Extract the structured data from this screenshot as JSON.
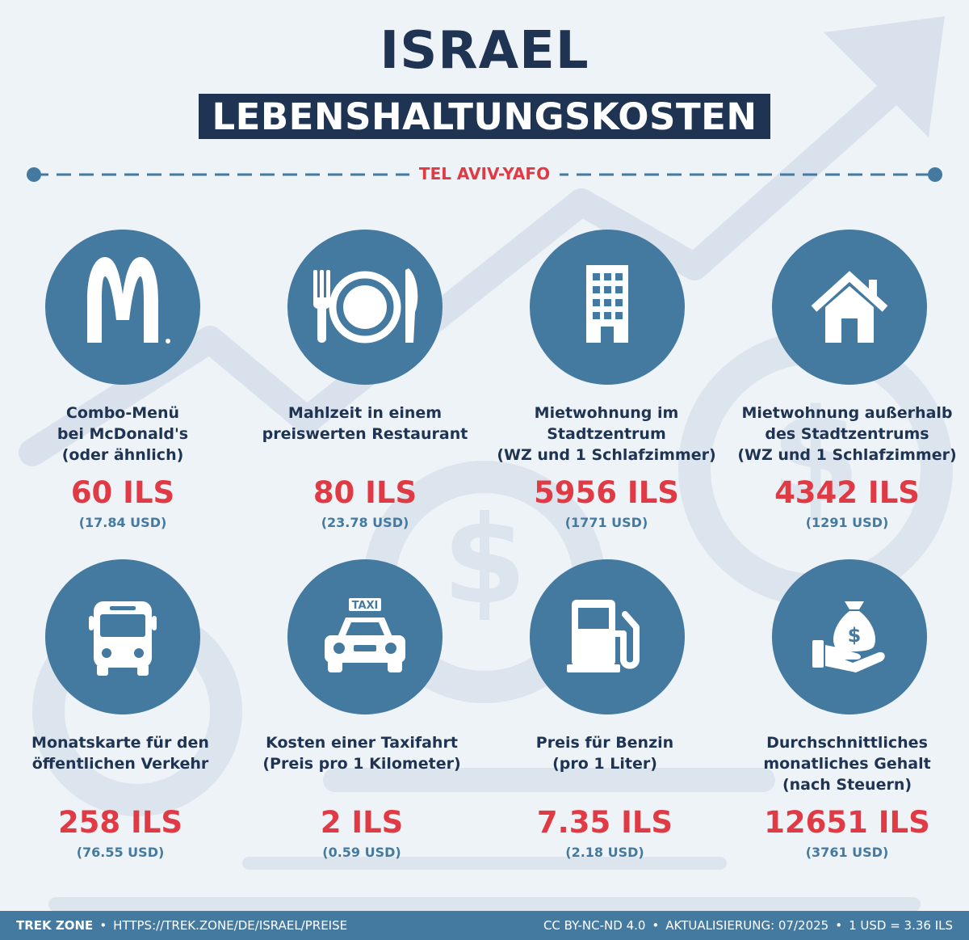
{
  "header": {
    "title": "ISRAEL",
    "subtitle": "LEBENSHALTUNGSKOSTEN",
    "city": "TEL AVIV-YAFO"
  },
  "items": [
    {
      "label": "Combo-Menü\nbei McDonald's\n(oder ähnlich)",
      "price": "60 ILS",
      "usd": "(17.84 USD)",
      "icon": "mcdonalds-icon"
    },
    {
      "label": "Mahlzeit in einem\npreiswerten Restaurant",
      "price": "80 ILS",
      "usd": "(23.78 USD)",
      "icon": "plate-cutlery-icon"
    },
    {
      "label": "Mietwohnung im\nStadtzentrum\n(WZ und 1 Schlafzimmer)",
      "price": "5956 ILS",
      "usd": "(1771 USD)",
      "icon": "building-icon"
    },
    {
      "label": "Mietwohnung außerhalb\ndes Stadtzentrums\n(WZ und 1 Schlafzimmer)",
      "price": "4342 ILS",
      "usd": "(1291 USD)",
      "icon": "house-icon"
    },
    {
      "label": "Monatskarte für den\nöffentlichen Verkehr",
      "price": "258 ILS",
      "usd": "(76.55 USD)",
      "icon": "bus-icon"
    },
    {
      "label": "Kosten einer Taxifahrt\n(Preis pro 1 Kilometer)",
      "price": "2 ILS",
      "usd": "(0.59 USD)",
      "icon": "taxi-icon",
      "sign": "TAXI"
    },
    {
      "label": "Preis für Benzin\n(pro 1 Liter)",
      "price": "7.35 ILS",
      "usd": "(2.18 USD)",
      "icon": "fuel-pump-icon"
    },
    {
      "label": "Durchschnittliches\nmonatliches Gehalt\n(nach Steuern)",
      "price": "12651 ILS",
      "usd": "(3761 USD)",
      "icon": "money-bag-hand-icon",
      "sign": "$"
    }
  ],
  "footer": {
    "brand": "TREK ZONE",
    "url": "HTTPS://TREK.ZONE/DE/ISRAEL/PREISE",
    "license": "CC BY-NC-ND 4.0",
    "updated": "AKTUALISIERUNG: 07/2025",
    "rate": "1 USD = 3.36 ILS"
  },
  "colors": {
    "navy": "#1f3352",
    "accent_red": "#e03a44",
    "icon_blue": "#457aa0",
    "background": "#eef3f8"
  }
}
